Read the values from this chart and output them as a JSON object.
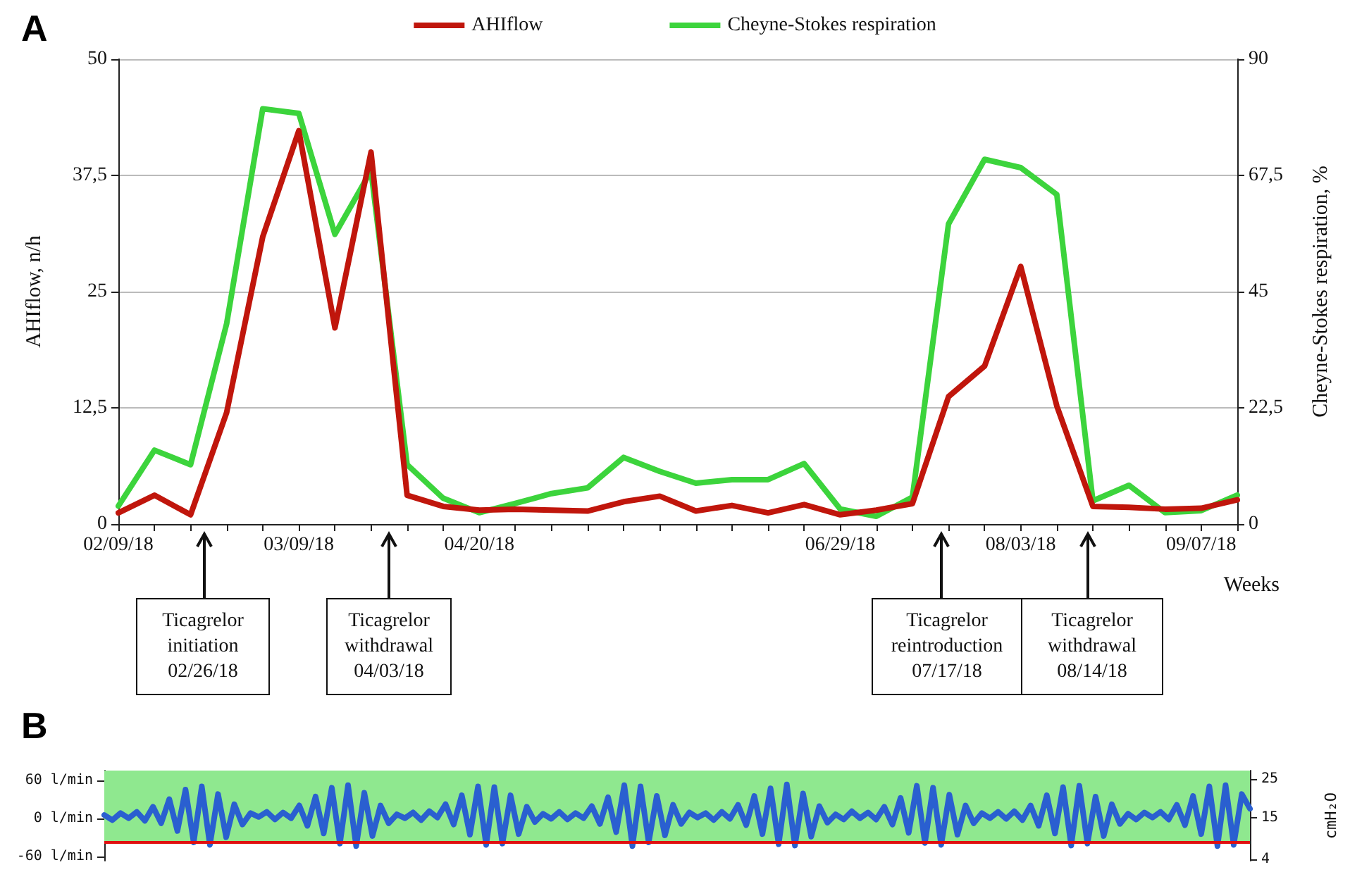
{
  "chart_data": [
    {
      "type": "line",
      "title": "A",
      "xlabel": "Weeks",
      "ylabel": "AHIflow, n/h",
      "y2label": "Cheyne-Stokes respiration, %",
      "categories": [
        "02/09/18",
        null,
        null,
        null,
        null,
        "03/09/18",
        null,
        null,
        null,
        null,
        "04/20/18",
        null,
        null,
        null,
        null,
        null,
        null,
        null,
        null,
        null,
        "06/29/18",
        null,
        null,
        null,
        null,
        "08/03/18",
        null,
        null,
        null,
        null,
        "09/07/18",
        null
      ],
      "series": [
        {
          "name": "AHIflow",
          "color": "#c0160c",
          "values": [
            1.2,
            3.1,
            1.0,
            12,
            30.9,
            42.3,
            21.1,
            40,
            3.1,
            1.9,
            1.5,
            1.6,
            1.5,
            1.4,
            2.4,
            3.0,
            1.4,
            2.0,
            1.2,
            2.1,
            1.0,
            1.5,
            2.2,
            13.7,
            17.0,
            27.7,
            12.7,
            1.9,
            1.8,
            1.6,
            1.7,
            2.6
          ]
        },
        {
          "name": "Cheyne-Stokes respiration",
          "color": "#3cd43c",
          "axis": "y2",
          "values": [
            3.5,
            14.3,
            11.5,
            38.8,
            80.4,
            79.5,
            56.1,
            68.4,
            11.5,
            5.0,
            2.2,
            4.0,
            5.9,
            7.0,
            12.9,
            10.2,
            7.9,
            8.6,
            8.6,
            11.7,
            2.9,
            1.5,
            5.2,
            58.1,
            70.6,
            69.0,
            63.8,
            4.5,
            7.5,
            2.2,
            2.6,
            5.6
          ]
        }
      ],
      "ylim": [
        0,
        50
      ],
      "yticks": [
        0,
        {
          "value": 12.5,
          "label": "12,5"
        },
        25,
        {
          "value": 37.5,
          "label": "37,5"
        },
        50
      ],
      "y2lim": [
        0,
        90
      ],
      "y2ticks": [
        0,
        {
          "value": 22.5,
          "label": "22,5"
        },
        45,
        {
          "value": 67.5,
          "label": "67,5"
        },
        90
      ],
      "grid": "y",
      "legend": "top",
      "line_style": "solid",
      "marker": "none",
      "annotations": [
        "Ticagrelor\ninitiation\n02/26/18",
        "Ticagrelor\nwithdrawal\n04/03/18",
        "Ticagrelor\nreintroduction\n07/17/18",
        "Ticagrelor\nwithdrawal\n08/14/18"
      ]
    },
    {
      "type": "line",
      "title": "B",
      "y2label": "cmH₂O",
      "categories": [
        null,
        null,
        null,
        null,
        null,
        null,
        null,
        null,
        null,
        null,
        null,
        null,
        null,
        null,
        null,
        null,
        null,
        null,
        null,
        null,
        null,
        null,
        null,
        null,
        null,
        null,
        null,
        null,
        null,
        null,
        null,
        null,
        null,
        null,
        null,
        null,
        null,
        null,
        null,
        null,
        null,
        null,
        null,
        null,
        null,
        null,
        null,
        null,
        null,
        null,
        null,
        null,
        null,
        null,
        null,
        null,
        null,
        null,
        null,
        null,
        null,
        null,
        null,
        null,
        null,
        null,
        null,
        null,
        null,
        null,
        null,
        null,
        null,
        null,
        null,
        null,
        null,
        null,
        null,
        null,
        null,
        null,
        null,
        null,
        null,
        null,
        null,
        null,
        null,
        null,
        null,
        null,
        null,
        null,
        null,
        null,
        null,
        null,
        null,
        null,
        null,
        null,
        null,
        null,
        null,
        null,
        null,
        null,
        null,
        null,
        null,
        null,
        null,
        null,
        null,
        null,
        null,
        null,
        null,
        null,
        null,
        null,
        null,
        null,
        null,
        null,
        null,
        null,
        null,
        null,
        null,
        null,
        null,
        null,
        null,
        null,
        null,
        null,
        null,
        null,
        null,
        null
      ],
      "series": [
        {
          "color": "#2a5fd0",
          "values": [
            5,
            -3,
            8,
            0,
            10,
            -4,
            18,
            -8,
            30,
            -20,
            45,
            -38,
            50,
            -42,
            38,
            -30,
            22,
            -10,
            8,
            2,
            10,
            -2,
            9,
            0,
            20,
            -12,
            34,
            -24,
            48,
            -40,
            52,
            -44,
            40,
            -28,
            20,
            -8,
            6,
            0,
            9,
            -3,
            11,
            1,
            22,
            -10,
            36,
            -26,
            50,
            -42,
            49,
            -40,
            36,
            -25,
            18,
            -6,
            7,
            -1,
            10,
            -2,
            8,
            0,
            19,
            -9,
            33,
            -22,
            52,
            -44,
            50,
            -38,
            35,
            -27,
            21,
            -9,
            9,
            1,
            8,
            -3,
            10,
            -1,
            21,
            -11,
            35,
            -25,
            47,
            -41,
            53,
            -43,
            39,
            -29,
            19,
            -7,
            6,
            -2,
            11,
            0,
            9,
            -2,
            18,
            -10,
            32,
            -23,
            51,
            -39,
            48,
            -42,
            37,
            -26,
            20,
            -8,
            8,
            0,
            10,
            -1,
            11,
            -3,
            20,
            -12,
            36,
            -24,
            49,
            -43,
            51,
            -40,
            34,
            -28,
            22,
            -9,
            7,
            -2,
            9,
            1,
            10,
            -2,
            21,
            -11,
            35,
            -25,
            50,
            -44,
            52,
            -42,
            38,
            15
          ]
        }
      ],
      "ylim": [
        -67,
        75
      ],
      "yticks": [
        {
          "value": 60,
          "label": "60 l/min"
        },
        {
          "value": 0,
          "label": "0 l/min"
        },
        {
          "value": -60,
          "label": "-60 l/min"
        }
      ],
      "y2lim": [
        3.7,
        27.3
      ],
      "y2ticks": [
        25,
        15,
        4
      ],
      "grid": false,
      "legend": false,
      "line_style": "solid",
      "marker": "none",
      "bands": [
        {
          "axis": "y",
          "from": -36,
          "to": 75,
          "color": "#8fe88f"
        }
      ],
      "ref_lines": [
        {
          "axis": "y2",
          "value": 8.5,
          "color": "#e01010"
        }
      ]
    }
  ]
}
